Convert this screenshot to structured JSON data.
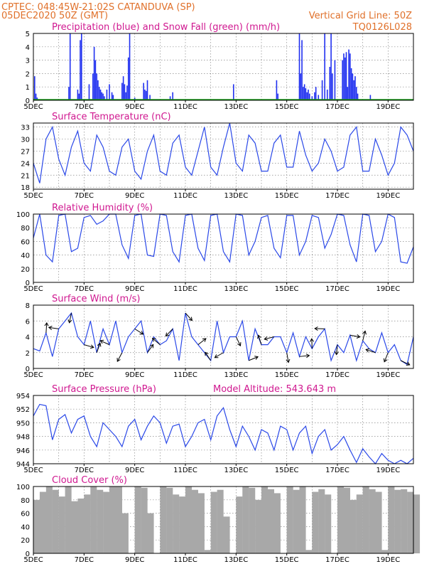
{
  "header": {
    "line1": "CPTEC:   048:45W-21:02S   CATANDUVA (SP)",
    "line2": "05DEC2020 50Z (GMT)",
    "right1": "Vertical Grid Line: 50Z",
    "right2": "TQ0126L028"
  },
  "x_ticks": [
    "5DEC",
    "7DEC",
    "9DEC",
    "11DEC",
    "13DEC",
    "15DEC",
    "17DEC",
    "19DEC"
  ],
  "panels": [
    {
      "id": "precip",
      "title": "Precipitation (blue) and Snow Fall (green) (mm/h)",
      "yticks": [
        "0",
        "1",
        "2",
        "3",
        "4",
        "5"
      ]
    },
    {
      "id": "temp",
      "title": "Surface Temperature (nC)",
      "yticks": [
        "18",
        "21",
        "24",
        "27",
        "30",
        "33"
      ]
    },
    {
      "id": "rh",
      "title": "Relative Humidity (%)",
      "yticks": [
        "0",
        "20",
        "40",
        "60",
        "80",
        "100"
      ]
    },
    {
      "id": "wind",
      "title": "Surface Wind (m/s)",
      "yticks": [
        "0",
        "2",
        "4",
        "6",
        "8"
      ]
    },
    {
      "id": "pres",
      "title": "Surface Pressure (hPa)",
      "extra": "Model Altitude: 543.643 m",
      "yticks": [
        "944",
        "946",
        "948",
        "950",
        "952",
        "954"
      ]
    },
    {
      "id": "cloud",
      "title": "Cloud Cover (%)",
      "yticks": [
        "0",
        "20",
        "40",
        "60",
        "80",
        "100"
      ]
    }
  ],
  "colors": {
    "line": "#2a48e8",
    "bar": "#2030f0",
    "snow": "#1aa01a",
    "cloud": "#a8a8a8",
    "title": "#d01890",
    "header": "#e0702a"
  },
  "chart_data": [
    {
      "type": "bar",
      "title": "Precipitation (blue) and Snow Fall (green) (mm/h)",
      "xlabel": "",
      "ylabel": "",
      "ylim": [
        0,
        5
      ],
      "x_unit": "days since 5DEC",
      "x": [
        0.05,
        0.1,
        0.15,
        1.4,
        1.45,
        1.75,
        1.8,
        1.85,
        1.9,
        2.2,
        2.35,
        2.4,
        2.45,
        2.5,
        2.55,
        2.6,
        2.65,
        2.7,
        2.75,
        2.8,
        2.9,
        3.0,
        3.1,
        3.15,
        3.5,
        3.55,
        3.6,
        3.65,
        3.7,
        3.75,
        3.8,
        4.0,
        4.35,
        4.4,
        4.45,
        4.5,
        4.6,
        5.4,
        5.5,
        7.9,
        9.6,
        9.65,
        10.5,
        10.55,
        10.6,
        10.65,
        10.7,
        10.75,
        10.8,
        10.85,
        10.9,
        11.0,
        11.1,
        11.15,
        11.25,
        11.4,
        11.5,
        11.6,
        11.7,
        11.75,
        11.8,
        11.9,
        12.2,
        12.25,
        12.3,
        12.35,
        12.4,
        12.45,
        12.5,
        12.55,
        12.6,
        12.65,
        12.7,
        12.75,
        12.8,
        13.3
      ],
      "series": [
        {
          "name": "Precipitation",
          "values": [
            1.8,
            0.5,
            0.2,
            1.0,
            5,
            0.8,
            0.5,
            4.5,
            5,
            1.2,
            2,
            4,
            3,
            2,
            1.5,
            1,
            0.8,
            0.6,
            0.5,
            0.3,
            0.8,
            1.2,
            0.6,
            0.4,
            1.3,
            1.8,
            1.2,
            0.6,
            1.1,
            3.2,
            5,
            0.2,
            1.3,
            0.8,
            0.7,
            1.5,
            0.4,
            0.3,
            0.6,
            1.2,
            1.5,
            0.5,
            5,
            2,
            4.5,
            1,
            1.2,
            0.9,
            0.6,
            0.8,
            0.5,
            0.3,
            0.6,
            1,
            0.4,
            1.5,
            5,
            0.8,
            2.5,
            5,
            2,
            3,
            3,
            3.5,
            3.2,
            3.6,
            1,
            3.8,
            3.5,
            2.4,
            2,
            1.5,
            1.8,
            1,
            0.5,
            0.4
          ]
        }
      ]
    },
    {
      "type": "line",
      "title": "Surface Temperature (nC)",
      "xlabel": "",
      "ylabel": "",
      "ylim": [
        17.5,
        34
      ],
      "x_unit": "days since 5DEC",
      "x": [
        0,
        0.25,
        0.5,
        0.75,
        1.0,
        1.25,
        1.5,
        1.75,
        2.0,
        2.25,
        2.5,
        2.75,
        3.0,
        3.25,
        3.5,
        3.75,
        4.0,
        4.25,
        4.5,
        4.75,
        5.0,
        5.25,
        5.5,
        5.75,
        6.0,
        6.25,
        6.5,
        6.75,
        7.0,
        7.25,
        7.5,
        7.75,
        8.0,
        8.25,
        8.5,
        8.75,
        9.0,
        9.25,
        9.5,
        9.75,
        10.0,
        10.25,
        10.5,
        10.75,
        11.0,
        11.25,
        11.5,
        11.75,
        12.0,
        12.25,
        12.5,
        12.75,
        13.0,
        13.25,
        13.5,
        13.75,
        14.0,
        14.25,
        14.5,
        14.75,
        15.0
      ],
      "series": [
        {
          "name": "Temperature",
          "values": [
            24,
            19,
            30,
            33,
            25,
            21,
            28,
            32,
            24,
            22,
            31,
            28,
            22,
            21,
            28,
            30,
            22,
            20,
            27,
            31,
            22,
            21,
            29,
            31,
            23,
            21,
            27,
            33,
            23,
            21,
            28,
            34,
            24,
            22,
            31,
            29,
            22,
            22,
            29,
            31,
            23,
            23,
            32,
            26,
            22,
            24,
            30,
            27,
            22,
            23,
            31,
            33,
            22,
            22,
            30,
            26,
            21,
            24,
            33,
            31,
            27
          ]
        }
      ]
    },
    {
      "type": "line",
      "title": "Relative Humidity (%)",
      "xlabel": "",
      "ylabel": "",
      "ylim": [
        0,
        100
      ],
      "x_unit": "days since 5DEC",
      "x": [
        0,
        0.25,
        0.5,
        0.75,
        1.0,
        1.25,
        1.5,
        1.75,
        2.0,
        2.25,
        2.5,
        2.75,
        3.0,
        3.25,
        3.5,
        3.75,
        4.0,
        4.25,
        4.5,
        4.75,
        5.0,
        5.25,
        5.5,
        5.75,
        6.0,
        6.25,
        6.5,
        6.75,
        7.0,
        7.25,
        7.5,
        7.75,
        8.0,
        8.25,
        8.5,
        8.75,
        9.0,
        9.25,
        9.5,
        9.75,
        10.0,
        10.25,
        10.5,
        10.75,
        11.0,
        11.25,
        11.5,
        11.75,
        12.0,
        12.25,
        12.5,
        12.75,
        13.0,
        13.25,
        13.5,
        13.75,
        14.0,
        14.25,
        14.5,
        14.75,
        15.0
      ],
      "series": [
        {
          "name": "Relative Humidity",
          "values": [
            65,
            100,
            40,
            30,
            98,
            100,
            45,
            50,
            95,
            98,
            85,
            90,
            100,
            100,
            55,
            35,
            98,
            100,
            40,
            38,
            100,
            98,
            45,
            30,
            98,
            100,
            50,
            32,
            98,
            100,
            45,
            30,
            100,
            98,
            40,
            60,
            95,
            98,
            50,
            36,
            98,
            98,
            40,
            60,
            98,
            95,
            50,
            70,
            100,
            98,
            55,
            30,
            100,
            98,
            45,
            60,
            100,
            95,
            30,
            28,
            52
          ]
        }
      ]
    },
    {
      "type": "line",
      "title": "Surface Wind (m/s)",
      "xlabel": "",
      "ylabel": "",
      "ylim": [
        0,
        8
      ],
      "x_unit": "days since 5DEC",
      "x": [
        0,
        0.25,
        0.5,
        0.75,
        1.0,
        1.25,
        1.5,
        1.75,
        2.0,
        2.25,
        2.5,
        2.75,
        3.0,
        3.25,
        3.5,
        3.75,
        4.0,
        4.25,
        4.5,
        4.75,
        5.0,
        5.25,
        5.5,
        5.75,
        6.0,
        6.25,
        6.5,
        6.75,
        7.0,
        7.25,
        7.5,
        7.75,
        8.0,
        8.25,
        8.5,
        8.75,
        9.0,
        9.25,
        9.5,
        9.75,
        10.0,
        10.25,
        10.5,
        10.75,
        11.0,
        11.25,
        11.5,
        11.75,
        12.0,
        12.25,
        12.5,
        12.75,
        13.0,
        13.25,
        13.5,
        13.75,
        14.0,
        14.25,
        14.5,
        14.75,
        15.0
      ],
      "series": [
        {
          "name": "Wind Speed",
          "values": [
            2.5,
            2.2,
            4.5,
            1.5,
            5,
            6,
            7,
            4,
            3,
            6,
            2,
            5,
            3,
            6,
            2,
            4,
            5,
            6,
            2,
            4,
            3,
            3.5,
            5,
            1,
            7,
            4,
            3,
            2,
            1,
            6,
            2,
            4,
            4,
            6,
            1,
            5,
            3,
            3,
            4,
            4,
            2,
            4.5,
            1.5,
            4,
            2.5,
            4,
            5,
            1,
            3,
            2,
            4.2,
            1,
            3.5,
            2.5,
            2,
            4.5,
            2,
            3,
            1,
            0.5,
            4
          ]
        }
      ]
    },
    {
      "type": "line",
      "title": "Surface Pressure (hPa)",
      "xlabel": "",
      "ylabel": "",
      "ylim": [
        944,
        954
      ],
      "x_unit": "days since 5DEC",
      "x": [
        0,
        0.25,
        0.5,
        0.75,
        1.0,
        1.25,
        1.5,
        1.75,
        2.0,
        2.25,
        2.5,
        2.75,
        3.0,
        3.25,
        3.5,
        3.75,
        4.0,
        4.25,
        4.5,
        4.75,
        5.0,
        5.25,
        5.5,
        5.75,
        6.0,
        6.25,
        6.5,
        6.75,
        7.0,
        7.25,
        7.5,
        7.75,
        8.0,
        8.25,
        8.5,
        8.75,
        9.0,
        9.25,
        9.5,
        9.75,
        10.0,
        10.25,
        10.5,
        10.75,
        11.0,
        11.25,
        11.5,
        11.75,
        12.0,
        12.25,
        12.5,
        12.75,
        13.0,
        13.25,
        13.5,
        13.75,
        14.0,
        14.25,
        14.5,
        14.75,
        15.0
      ],
      "series": [
        {
          "name": "Pressure",
          "values": [
            951,
            952.7,
            952.5,
            947.5,
            950.5,
            951.2,
            948.5,
            950.5,
            951,
            948,
            946.5,
            950,
            949,
            948,
            946.5,
            949.5,
            950.5,
            947.5,
            949.5,
            951,
            950,
            947,
            949.5,
            949.8,
            946.5,
            948,
            950,
            950.5,
            947.5,
            951,
            952.2,
            949,
            946.5,
            949.5,
            948,
            946,
            949,
            948.5,
            946,
            949.5,
            949,
            946,
            948.5,
            949.5,
            945.5,
            948,
            949,
            946,
            946.8,
            948,
            946,
            944.2,
            946.2,
            945,
            943.8,
            945.5,
            944.5,
            943.5,
            944.5,
            944,
            944.8
          ]
        }
      ]
    },
    {
      "type": "bar",
      "title": "Cloud Cover (%)",
      "xlabel": "",
      "ylabel": "",
      "ylim": [
        0,
        100
      ],
      "x_unit": "days since 5DEC",
      "x": [
        0,
        0.25,
        0.5,
        0.75,
        1.0,
        1.25,
        1.5,
        1.75,
        2.0,
        2.25,
        2.5,
        2.75,
        3.0,
        3.25,
        3.5,
        3.75,
        4.0,
        4.25,
        4.5,
        4.75,
        5.0,
        5.25,
        5.5,
        5.75,
        6.0,
        6.25,
        6.5,
        6.75,
        7.0,
        7.25,
        7.5,
        7.75,
        8.0,
        8.25,
        8.5,
        8.75,
        9.0,
        9.25,
        9.5,
        9.75,
        10.0,
        10.25,
        10.5,
        10.75,
        11.0,
        11.25,
        11.5,
        11.75,
        12.0,
        12.25,
        12.5,
        12.75,
        13.0,
        13.25,
        13.5,
        13.75,
        14.0,
        14.25,
        14.5,
        14.75,
        15.0
      ],
      "series": [
        {
          "name": "Cloud Cover",
          "values": [
            80,
            92,
            100,
            95,
            85,
            100,
            78,
            82,
            88,
            100,
            95,
            92,
            100,
            100,
            60,
            0,
            100,
            98,
            60,
            0,
            100,
            98,
            88,
            85,
            100,
            95,
            90,
            5,
            92,
            95,
            55,
            0,
            85,
            100,
            98,
            80,
            100,
            96,
            90,
            0,
            100,
            95,
            100,
            5,
            92,
            96,
            88,
            0,
            100,
            98,
            80,
            88,
            100,
            96,
            92,
            5,
            100,
            95,
            96,
            92,
            88
          ]
        }
      ]
    }
  ]
}
